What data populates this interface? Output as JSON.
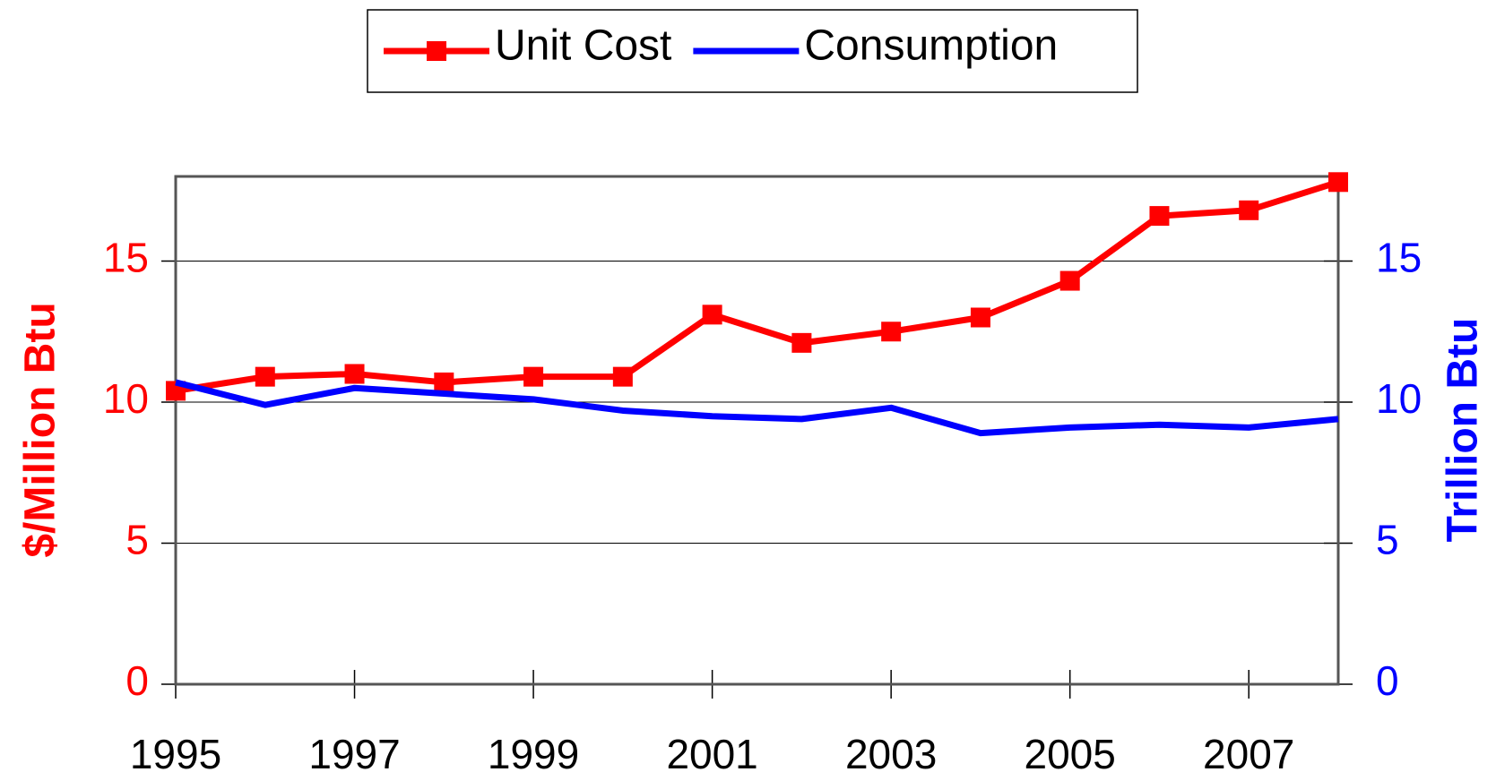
{
  "chart_data": {
    "type": "line",
    "x": [
      1995,
      1996,
      1997,
      1998,
      1999,
      2000,
      2001,
      2002,
      2003,
      2004,
      2005,
      2006,
      2007,
      2008
    ],
    "xlim": [
      1995,
      2008
    ],
    "xticks": [
      1995,
      1997,
      1999,
      2001,
      2003,
      2005,
      2007
    ],
    "ylim": [
      0,
      18
    ],
    "yticks": [
      0,
      5,
      10,
      15
    ],
    "y2lim": [
      0,
      18
    ],
    "y2ticks": [
      0,
      5,
      10,
      15
    ],
    "ylabel": "$/Million Btu",
    "y2label": "Trillion Btu",
    "grid": true,
    "legend": "top",
    "series": [
      {
        "name": "Unit Cost",
        "color": "#ff0000",
        "marker": "square",
        "values": [
          10.4,
          10.9,
          11.0,
          10.7,
          10.9,
          10.9,
          13.1,
          12.1,
          12.5,
          13.0,
          14.3,
          16.6,
          16.8,
          17.8
        ]
      },
      {
        "name": "Consumption",
        "color": "#0000ff",
        "axis": "y2",
        "values": [
          10.7,
          9.9,
          10.5,
          10.3,
          10.1,
          9.7,
          9.5,
          9.4,
          9.8,
          8.9,
          9.1,
          9.2,
          9.1,
          9.4
        ]
      }
    ]
  }
}
